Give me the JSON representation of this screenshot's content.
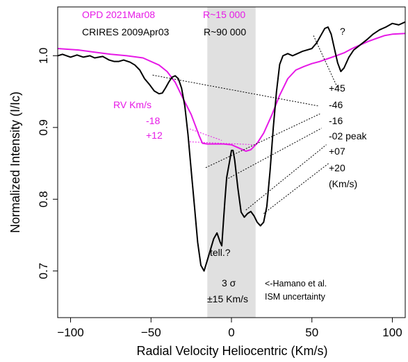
{
  "chart_data": {
    "type": "line",
    "xlabel": "Radial Velocity Heliocentric  (Km/s)",
    "ylabel": "Normalized Intensity  (I/Ic)",
    "xlim": [
      -108,
      108
    ],
    "ylim": [
      0.635,
      1.068
    ],
    "x_ticks": [
      -100,
      -50,
      0,
      50,
      100
    ],
    "x_tick_labels": [
      "−100",
      "−50",
      "0",
      "50",
      "100"
    ],
    "y_ticks": [
      0.7,
      0.8,
      0.9,
      1.0
    ],
    "y_tick_labels": [
      "0.7",
      "0.8",
      "0.9",
      "1.0"
    ],
    "grid": false,
    "colors": {
      "opd": "#e619e6",
      "crires": "#000000",
      "band": "#e0e0e0"
    },
    "shaded_band": {
      "x_from": -15,
      "x_to": 15
    },
    "legend": [
      {
        "text": "OPD 2021Mar08",
        "resolution": "R~15 000",
        "color": "#e619e6"
      },
      {
        "text": "CRIRES 2009Apr03",
        "resolution": "R~90 000",
        "color": "#000000"
      }
    ],
    "series": [
      {
        "id": "opd",
        "color": "#e619e6",
        "points": [
          [
            -108,
            1.01
          ],
          [
            -95,
            1.008
          ],
          [
            -85,
            1.005
          ],
          [
            -75,
            1.002
          ],
          [
            -65,
            1.0
          ],
          [
            -55,
            0.997
          ],
          [
            -45,
            0.987
          ],
          [
            -40,
            0.978
          ],
          [
            -35,
            0.963
          ],
          [
            -30,
            0.94
          ],
          [
            -25,
            0.918
          ],
          [
            -22,
            0.9
          ],
          [
            -20,
            0.888
          ],
          [
            -18,
            0.878
          ],
          [
            -15,
            0.877
          ],
          [
            -10,
            0.877
          ],
          [
            -5,
            0.877
          ],
          [
            0,
            0.876
          ],
          [
            5,
            0.871
          ],
          [
            9,
            0.867
          ],
          [
            12,
            0.869
          ],
          [
            16,
            0.878
          ],
          [
            20,
            0.892
          ],
          [
            25,
            0.917
          ],
          [
            30,
            0.945
          ],
          [
            35,
            0.968
          ],
          [
            40,
            0.98
          ],
          [
            45,
            0.985
          ],
          [
            50,
            0.989
          ],
          [
            55,
            0.992
          ],
          [
            60,
            0.996
          ],
          [
            65,
            1.0
          ],
          [
            70,
            1.004
          ],
          [
            75,
            1.01
          ],
          [
            80,
            1.015
          ],
          [
            85,
            1.02
          ],
          [
            90,
            1.024
          ],
          [
            95,
            1.028
          ],
          [
            100,
            1.03
          ],
          [
            108,
            1.031
          ]
        ]
      },
      {
        "id": "crires",
        "color": "#000000",
        "points": [
          [
            -108,
            1.0
          ],
          [
            -105,
            1.002
          ],
          [
            -100,
            0.998
          ],
          [
            -96,
            1.001
          ],
          [
            -92,
            0.998
          ],
          [
            -88,
            1.0
          ],
          [
            -85,
            0.997
          ],
          [
            -80,
            0.999
          ],
          [
            -76,
            0.994
          ],
          [
            -73,
            0.992
          ],
          [
            -70,
            0.992
          ],
          [
            -67,
            0.994
          ],
          [
            -63,
            0.991
          ],
          [
            -60,
            0.987
          ],
          [
            -57,
            0.98
          ],
          [
            -54,
            0.968
          ],
          [
            -51,
            0.96
          ],
          [
            -48,
            0.951
          ],
          [
            -45,
            0.947
          ],
          [
            -43,
            0.948
          ],
          [
            -41,
            0.955
          ],
          [
            -39,
            0.963
          ],
          [
            -37,
            0.97
          ],
          [
            -35,
            0.972
          ],
          [
            -33,
            0.968
          ],
          [
            -31,
            0.955
          ],
          [
            -29,
            0.93
          ],
          [
            -27,
            0.89
          ],
          [
            -25,
            0.84
          ],
          [
            -23,
            0.79
          ],
          [
            -21,
            0.74
          ],
          [
            -19,
            0.708
          ],
          [
            -17,
            0.7
          ],
          [
            -15,
            0.715
          ],
          [
            -13,
            0.73
          ],
          [
            -11,
            0.745
          ],
          [
            -9,
            0.753
          ],
          [
            -7,
            0.74
          ],
          [
            -6,
            0.735
          ],
          [
            -5,
            0.768
          ],
          [
            -4,
            0.8
          ],
          [
            -3,
            0.83
          ],
          [
            -1,
            0.855
          ],
          [
            0,
            0.868
          ],
          [
            1,
            0.868
          ],
          [
            2,
            0.855
          ],
          [
            4,
            0.815
          ],
          [
            6,
            0.782
          ],
          [
            8,
            0.775
          ],
          [
            10,
            0.78
          ],
          [
            12,
            0.783
          ],
          [
            14,
            0.777
          ],
          [
            16,
            0.768
          ],
          [
            18,
            0.763
          ],
          [
            20,
            0.768
          ],
          [
            22,
            0.79
          ],
          [
            24,
            0.84
          ],
          [
            26,
            0.9
          ],
          [
            28,
            0.95
          ],
          [
            30,
            0.988
          ],
          [
            32,
            1.0
          ],
          [
            35,
            1.003
          ],
          [
            38,
            1.0
          ],
          [
            41,
            1.003
          ],
          [
            44,
            1.006
          ],
          [
            47,
            1.008
          ],
          [
            50,
            1.01
          ],
          [
            53,
            1.018
          ],
          [
            56,
            1.03
          ],
          [
            58,
            1.038
          ],
          [
            60,
            1.04
          ],
          [
            62,
            1.03
          ],
          [
            64,
            1.01
          ],
          [
            66,
            0.99
          ],
          [
            68,
            0.978
          ],
          [
            70,
            0.983
          ],
          [
            73,
            0.998
          ],
          [
            76,
            1.008
          ],
          [
            80,
            1.015
          ],
          [
            84,
            1.022
          ],
          [
            88,
            1.03
          ],
          [
            92,
            1.036
          ],
          [
            96,
            1.04
          ],
          [
            100,
            1.045
          ],
          [
            104,
            1.043
          ],
          [
            108,
            1.047
          ]
        ]
      }
    ],
    "annotations": {
      "rv_title": "RV Km/s",
      "rv_minus18": "-18",
      "rv_plus12": "+12",
      "question": "?",
      "tell": "tell.?",
      "sigma": "3 σ",
      "sigma_range": "±15 Km/s",
      "hamano_1": "<-Hamano et al.",
      "hamano_2": "ISM uncertainty",
      "lines": [
        {
          "label": "+45",
          "from": [
            51,
            1.028
          ],
          "to": [
            66,
            0.955
          ]
        },
        {
          "label": "-46",
          "from": [
            -49,
            0.973
          ],
          "to": [
            54,
            0.93
          ]
        },
        {
          "label": "-16",
          "from": [
            -16,
            0.844
          ],
          "to": [
            55,
            0.919
          ]
        },
        {
          "label": "-02 peak",
          "from": [
            -2,
            0.829
          ],
          "to": [
            56,
            0.899
          ]
        },
        {
          "label": "+07",
          "from": [
            9,
            0.785
          ],
          "to": [
            59,
            0.876
          ]
        },
        {
          "label": "+20",
          "from": [
            20,
            0.78
          ],
          "to": [
            61,
            0.851
          ]
        }
      ],
      "units": "(Km/s)"
    }
  }
}
